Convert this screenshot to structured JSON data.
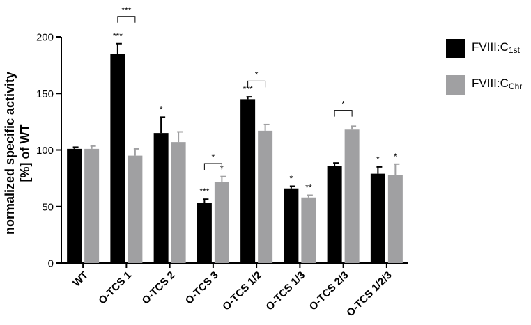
{
  "chart_data": {
    "type": "bar",
    "title": "",
    "xlabel": "",
    "ylabel": "normalized specific activity",
    "ylabel_line2": "[%] of WT",
    "ylim": [
      0,
      200
    ],
    "yticks": [
      0,
      50,
      100,
      150,
      200
    ],
    "categories": [
      "WT",
      "O-TCS 1",
      "O-TCS 2",
      "O-TCS 3",
      "O-TCS 1/2",
      "O-TCS 1/3",
      "O-TCS 2/3",
      "O-TCS 1/2/3"
    ],
    "series": [
      {
        "name": "FVIII:C1st",
        "name_main": "FVIII:C",
        "name_sub": "1st",
        "color": "#000000",
        "values": [
          101,
          185,
          115,
          53,
          145,
          66,
          86,
          79
        ],
        "errors": [
          1.5,
          9,
          14,
          3.5,
          2,
          2,
          2.5,
          6
        ],
        "annotations": [
          "",
          "***",
          "*",
          "***",
          "***",
          "*",
          "",
          "*"
        ]
      },
      {
        "name": "FVIII:CChr",
        "name_main": "FVIII:C",
        "name_sub": "Chr",
        "color": "#a0a0a2",
        "values": [
          101,
          95,
          107,
          72,
          117,
          58,
          118,
          78
        ],
        "errors": [
          2.5,
          6,
          9,
          4.5,
          5.5,
          2,
          3,
          9.5
        ],
        "annotations": [
          "",
          "",
          "",
          "*",
          "",
          "**",
          "",
          "*"
        ]
      }
    ],
    "comparisons": [
      {
        "category_index": 1,
        "label": "***",
        "y": 218
      },
      {
        "category_index": 3,
        "label": "*",
        "y": 88
      },
      {
        "category_index": 4,
        "label": "*",
        "y": 161
      },
      {
        "category_index": 6,
        "label": "*",
        "y": 135
      }
    ],
    "legend_position": "right",
    "grid": false
  }
}
